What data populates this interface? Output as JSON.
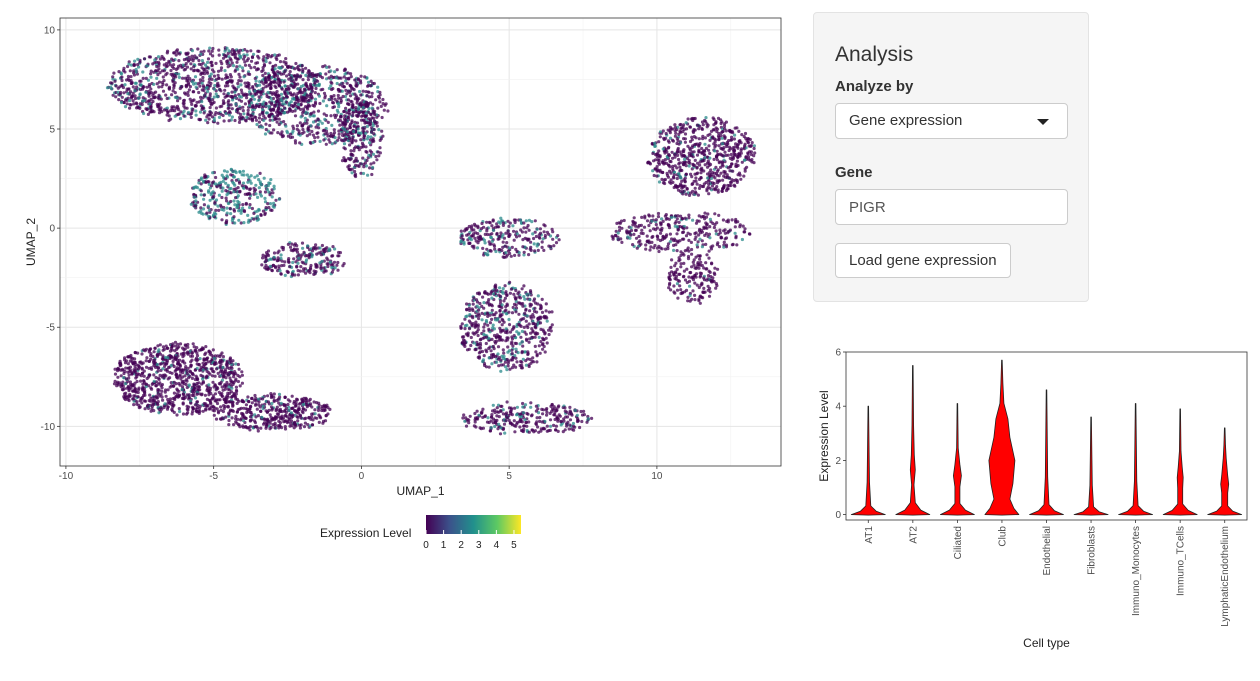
{
  "umap": {
    "xlabel": "UMAP_1",
    "ylabel": "UMAP_2",
    "xlim": [
      -10.2,
      14.2
    ],
    "ylim": [
      -12,
      10.6
    ],
    "xticks": [
      -10,
      -5,
      0,
      5,
      10
    ],
    "yticks": [
      10,
      5,
      0,
      -5,
      -10
    ],
    "grid": true,
    "legend": {
      "title": "Expression Level",
      "ticks": [
        "0",
        "1",
        "2",
        "3",
        "4",
        "5"
      ],
      "colors": [
        "#440154",
        "#3b528b",
        "#21908c",
        "#5dc963",
        "#fde725"
      ]
    },
    "point_color_base": "#440154",
    "point_color_high": "#2a8a8b"
  },
  "panel": {
    "title": "Analysis",
    "analyze_by_label": "Analyze by",
    "analyze_by_value": "Gene expression",
    "gene_label": "Gene",
    "gene_value": "PIGR",
    "load_button": "Load gene expression"
  },
  "chart_data": {
    "type": "violin",
    "xlabel": "Cell type",
    "ylabel": "Expression Level",
    "ylim": [
      -0.2,
      6
    ],
    "yticks": [
      0,
      2,
      4,
      6
    ],
    "fill_color": "#ff0000",
    "categories": [
      "AT1",
      "AT2",
      "Ciliated",
      "Club",
      "Endothelial",
      "Fibroblasts",
      "Immuno_Monocytes",
      "Immuno_TCells",
      "LymphaticEndothelium"
    ],
    "max_values": [
      4.0,
      5.5,
      4.1,
      5.7,
      4.6,
      3.6,
      4.1,
      3.9,
      3.2
    ]
  }
}
